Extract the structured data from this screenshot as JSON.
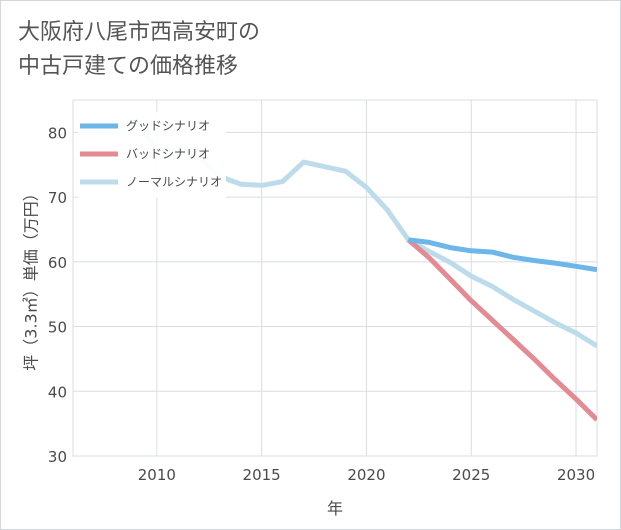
{
  "chart_data": {
    "type": "line",
    "title": "大阪府八尾市西高安町の\n中古戸建ての価格推移",
    "xlabel": "年",
    "ylabel": "坪（3.3㎡）単価（万円）",
    "xlim": [
      2006,
      2031
    ],
    "ylim": [
      30,
      85
    ],
    "xticks": [
      2010,
      2015,
      2020,
      2025,
      2030
    ],
    "yticks": [
      30,
      40,
      50,
      60,
      70,
      80
    ],
    "grid": true,
    "legend_position": "top-left",
    "series": [
      {
        "name": "グッドシナリオ",
        "color": "#6cb6ea",
        "x": [
          2022,
          2023,
          2024,
          2025,
          2026,
          2027,
          2028,
          2029,
          2030,
          2031
        ],
        "y": [
          63.4,
          63.0,
          62.2,
          61.7,
          61.5,
          60.7,
          60.2,
          59.8,
          59.3,
          58.8
        ]
      },
      {
        "name": "バッドシナリオ",
        "color": "#e48a92",
        "x": [
          2022,
          2023,
          2024,
          2025,
          2026,
          2027,
          2028,
          2029,
          2030,
          2031
        ],
        "y": [
          63.4,
          60.6,
          57.3,
          54.0,
          51.0,
          48.0,
          45.0,
          41.8,
          38.8,
          35.6
        ]
      },
      {
        "name": "ノーマルシナリオ",
        "color": "#bcdcec",
        "x": [
          2008,
          2009,
          2010,
          2011,
          2012,
          2013,
          2014,
          2015,
          2016,
          2017,
          2018,
          2019,
          2020,
          2021,
          2022,
          2023,
          2024,
          2025,
          2026,
          2027,
          2028,
          2029,
          2030,
          2031
        ],
        "y": [
          81.0,
          81.8,
          77.2,
          77.6,
          76.2,
          73.2,
          72.0,
          71.8,
          72.4,
          75.4,
          74.7,
          74.0,
          71.5,
          68.0,
          63.4,
          61.6,
          59.9,
          57.8,
          56.2,
          54.2,
          52.4,
          50.6,
          49.0,
          47.0
        ]
      }
    ]
  }
}
